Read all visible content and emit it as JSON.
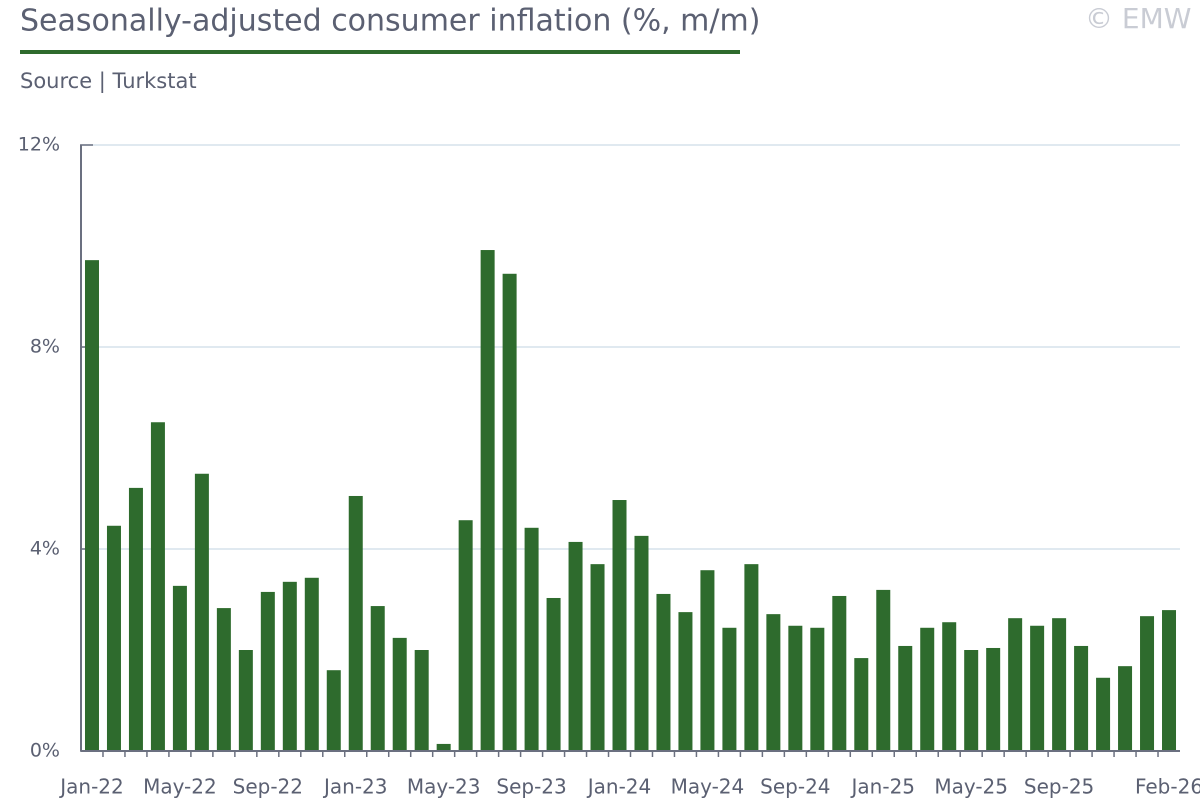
{
  "chart_data": {
    "type": "bar",
    "title": "Seasonally-adjusted consumer inflation (%, m/m)",
    "subtitle": "Source | Turkstat",
    "watermark": "© EMW",
    "color": "#2e6b2d",
    "grid": true,
    "categories": [
      "Jan-22",
      null,
      null,
      null,
      "May-22",
      null,
      null,
      null,
      "Sep-22",
      null,
      null,
      null,
      "Jan-23",
      null,
      null,
      null,
      "May-23",
      null,
      null,
      null,
      "Sep-23",
      null,
      null,
      null,
      "Jan-24",
      null,
      null,
      null,
      "May-24",
      null,
      null,
      null,
      "Sep-24",
      null,
      null,
      null,
      "Jan-25",
      null,
      null,
      null,
      "May-25",
      null,
      null,
      null,
      "Sep-25",
      null,
      null,
      null,
      null,
      "Feb-26"
    ],
    "values": [
      9.72,
      4.46,
      5.21,
      6.51,
      3.27,
      5.49,
      2.83,
      2.0,
      3.15,
      3.35,
      3.43,
      1.6,
      5.05,
      2.87,
      2.24,
      2.0,
      0.14,
      4.57,
      9.92,
      9.45,
      4.42,
      3.03,
      4.14,
      3.7,
      4.97,
      4.26,
      3.11,
      2.75,
      3.58,
      2.44,
      3.7,
      2.71,
      2.48,
      2.44,
      3.07,
      1.84,
      3.19,
      2.08,
      2.44,
      2.55,
      2.0,
      2.04,
      2.63,
      2.48,
      2.63,
      2.08,
      1.45,
      1.68,
      2.67,
      2.79
    ],
    "ylim": [
      0,
      12
    ],
    "yticks": [
      {
        "value": 0,
        "label": "0%"
      },
      {
        "value": 4,
        "label": "4%"
      },
      {
        "value": 8,
        "label": "8%"
      },
      {
        "value": 12,
        "label": "12%"
      }
    ]
  }
}
